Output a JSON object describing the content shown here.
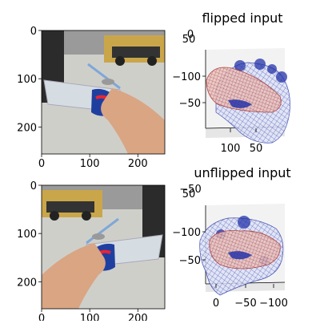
{
  "colors": {
    "background": "#ffffff",
    "hand_mesh": "#2433a8",
    "object_mesh": "#a52a2a",
    "pane": "#f2f2f2",
    "floor": "#c9c9c5",
    "skin": "#d9a583",
    "bottle": "#d6dde2",
    "label": "#1f3fa0"
  },
  "chart_data": [
    {
      "type": "image",
      "panel": "top-left",
      "xlim": [
        0,
        256
      ],
      "ylim": [
        256,
        0
      ],
      "x_ticks": [
        0,
        100,
        200
      ],
      "y_ticks": [
        0,
        100,
        200
      ],
      "x_tick_labels": [
        "0",
        "100",
        "200"
      ],
      "y_tick_labels": [
        "0",
        "100",
        "200"
      ]
    },
    {
      "type": "scatter",
      "panel": "top-right",
      "title": "flipped input",
      "x_ticks": [
        100,
        50
      ],
      "x_tick_labels": [
        "100",
        "50"
      ],
      "y_ticks": [
        -100,
        -50
      ],
      "y_tick_labels": [
        "−100",
        "−50"
      ],
      "z_ticks": [
        50
      ],
      "z_tick_labels": [
        "50"
      ],
      "top_tick_label": "0"
    },
    {
      "type": "image",
      "panel": "bottom-left",
      "xlim": [
        0,
        256
      ],
      "ylim": [
        256,
        0
      ],
      "x_ticks": [
        0,
        100,
        200
      ],
      "y_ticks": [
        0,
        100,
        200
      ],
      "x_tick_labels": [
        "0",
        "100",
        "200"
      ],
      "y_tick_labels": [
        "0",
        "100",
        "200"
      ]
    },
    {
      "type": "scatter",
      "panel": "bottom-right",
      "title": "unflipped input",
      "x_ticks": [
        0,
        -50,
        -100
      ],
      "x_tick_labels": [
        "0",
        "−50",
        "−100"
      ],
      "y_ticks": [
        -100,
        -50
      ],
      "y_tick_labels": [
        "−100",
        "−50"
      ],
      "z_ticks": [
        50
      ],
      "z_tick_labels": [
        "50"
      ],
      "top_tick_label": "−50"
    }
  ]
}
